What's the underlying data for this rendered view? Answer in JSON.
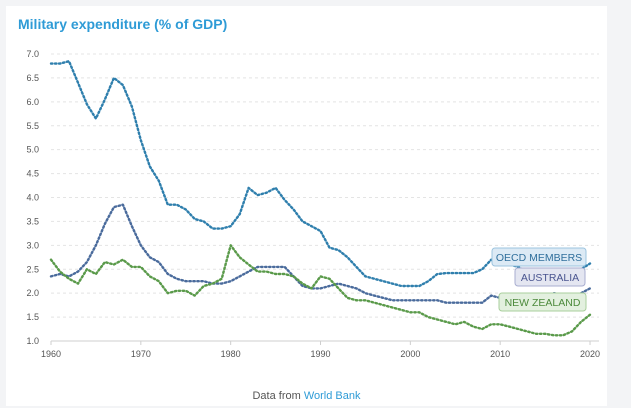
{
  "chart_data": {
    "type": "line",
    "title": "Military expenditure (% of GDP)",
    "xlim": [
      1960,
      2021
    ],
    "ylim": [
      1.0,
      7.0
    ],
    "yticks": [
      "1.0",
      "1.5",
      "2.0",
      "2.5",
      "3.0",
      "3.5",
      "4.0",
      "4.5",
      "5.0",
      "5.5",
      "6.0",
      "6.5",
      "7.0"
    ],
    "xticks": [
      "1960",
      "1970",
      "1980",
      "1990",
      "2000",
      "2010",
      "2020"
    ],
    "grid": true,
    "series": [
      {
        "name": "OECD MEMBERS",
        "color": "#2f7fad",
        "x": [
          1960,
          1961,
          1962,
          1963,
          1964,
          1965,
          1966,
          1967,
          1968,
          1969,
          1970,
          1971,
          1972,
          1973,
          1974,
          1975,
          1976,
          1977,
          1978,
          1979,
          1980,
          1981,
          1982,
          1983,
          1984,
          1985,
          1986,
          1987,
          1988,
          1989,
          1990,
          1991,
          1992,
          1993,
          1994,
          1995,
          1996,
          1997,
          1998,
          1999,
          2000,
          2001,
          2002,
          2003,
          2004,
          2005,
          2006,
          2007,
          2008,
          2009,
          2010,
          2011,
          2012,
          2013,
          2014,
          2015,
          2016,
          2017,
          2018,
          2019,
          2020
        ],
        "values": [
          6.8,
          6.8,
          6.85,
          6.4,
          5.95,
          5.65,
          6.05,
          6.5,
          6.35,
          5.9,
          5.2,
          4.65,
          4.35,
          3.85,
          3.85,
          3.75,
          3.55,
          3.5,
          3.35,
          3.35,
          3.4,
          3.65,
          4.2,
          4.05,
          4.1,
          4.2,
          3.95,
          3.75,
          3.5,
          3.4,
          3.3,
          2.95,
          2.9,
          2.75,
          2.55,
          2.35,
          2.3,
          2.25,
          2.2,
          2.15,
          2.15,
          2.15,
          2.25,
          2.4,
          2.42,
          2.42,
          2.42,
          2.42,
          2.5,
          2.7,
          2.65,
          2.6,
          2.55,
          2.45,
          2.4,
          2.38,
          2.38,
          2.35,
          2.4,
          2.5,
          2.62
        ]
      },
      {
        "name": "AUSTRALIA",
        "color": "#4a6b9c",
        "x": [
          1960,
          1961,
          1962,
          1963,
          1964,
          1965,
          1966,
          1967,
          1968,
          1969,
          1970,
          1971,
          1972,
          1973,
          1974,
          1975,
          1976,
          1977,
          1978,
          1979,
          1980,
          1981,
          1982,
          1983,
          1984,
          1985,
          1986,
          1987,
          1988,
          1989,
          1990,
          1991,
          1992,
          1993,
          1994,
          1995,
          1996,
          1997,
          1998,
          1999,
          2000,
          2001,
          2002,
          2003,
          2004,
          2005,
          2006,
          2007,
          2008,
          2009,
          2010,
          2011,
          2012,
          2013,
          2014,
          2015,
          2016,
          2017,
          2018,
          2019,
          2020
        ],
        "values": [
          2.35,
          2.4,
          2.35,
          2.45,
          2.65,
          3.0,
          3.45,
          3.8,
          3.85,
          3.4,
          3.0,
          2.75,
          2.65,
          2.4,
          2.3,
          2.25,
          2.25,
          2.25,
          2.2,
          2.2,
          2.25,
          2.35,
          2.45,
          2.55,
          2.55,
          2.55,
          2.55,
          2.35,
          2.15,
          2.1,
          2.1,
          2.15,
          2.2,
          2.15,
          2.1,
          2.0,
          1.95,
          1.9,
          1.85,
          1.85,
          1.85,
          1.85,
          1.85,
          1.85,
          1.8,
          1.8,
          1.8,
          1.8,
          1.8,
          1.95,
          1.9,
          1.85,
          1.75,
          1.65,
          1.8,
          1.95,
          2.0,
          1.95,
          1.95,
          2.0,
          2.1
        ]
      },
      {
        "name": "NEW ZEALAND",
        "color": "#5a9a4a",
        "x": [
          1960,
          1961,
          1962,
          1963,
          1964,
          1965,
          1966,
          1967,
          1968,
          1969,
          1970,
          1971,
          1972,
          1973,
          1974,
          1975,
          1976,
          1977,
          1978,
          1979,
          1980,
          1981,
          1982,
          1983,
          1984,
          1985,
          1986,
          1987,
          1988,
          1989,
          1990,
          1991,
          1992,
          1993,
          1994,
          1995,
          1996,
          1997,
          1998,
          1999,
          2000,
          2001,
          2002,
          2003,
          2004,
          2005,
          2006,
          2007,
          2008,
          2009,
          2010,
          2011,
          2012,
          2013,
          2014,
          2015,
          2016,
          2017,
          2018,
          2019,
          2020
        ],
        "values": [
          2.7,
          2.45,
          2.3,
          2.2,
          2.5,
          2.4,
          2.65,
          2.6,
          2.7,
          2.55,
          2.55,
          2.35,
          2.25,
          2.0,
          2.05,
          2.05,
          1.95,
          2.15,
          2.2,
          2.3,
          3.0,
          2.75,
          2.6,
          2.45,
          2.45,
          2.4,
          2.4,
          2.35,
          2.2,
          2.1,
          2.35,
          2.3,
          2.1,
          1.9,
          1.85,
          1.85,
          1.8,
          1.75,
          1.7,
          1.65,
          1.6,
          1.6,
          1.5,
          1.45,
          1.4,
          1.35,
          1.4,
          1.3,
          1.25,
          1.35,
          1.35,
          1.3,
          1.25,
          1.2,
          1.15,
          1.15,
          1.12,
          1.12,
          1.2,
          1.4,
          1.55
        ]
      }
    ]
  },
  "footer": {
    "prefix": "Data from",
    "source": "World Bank"
  }
}
